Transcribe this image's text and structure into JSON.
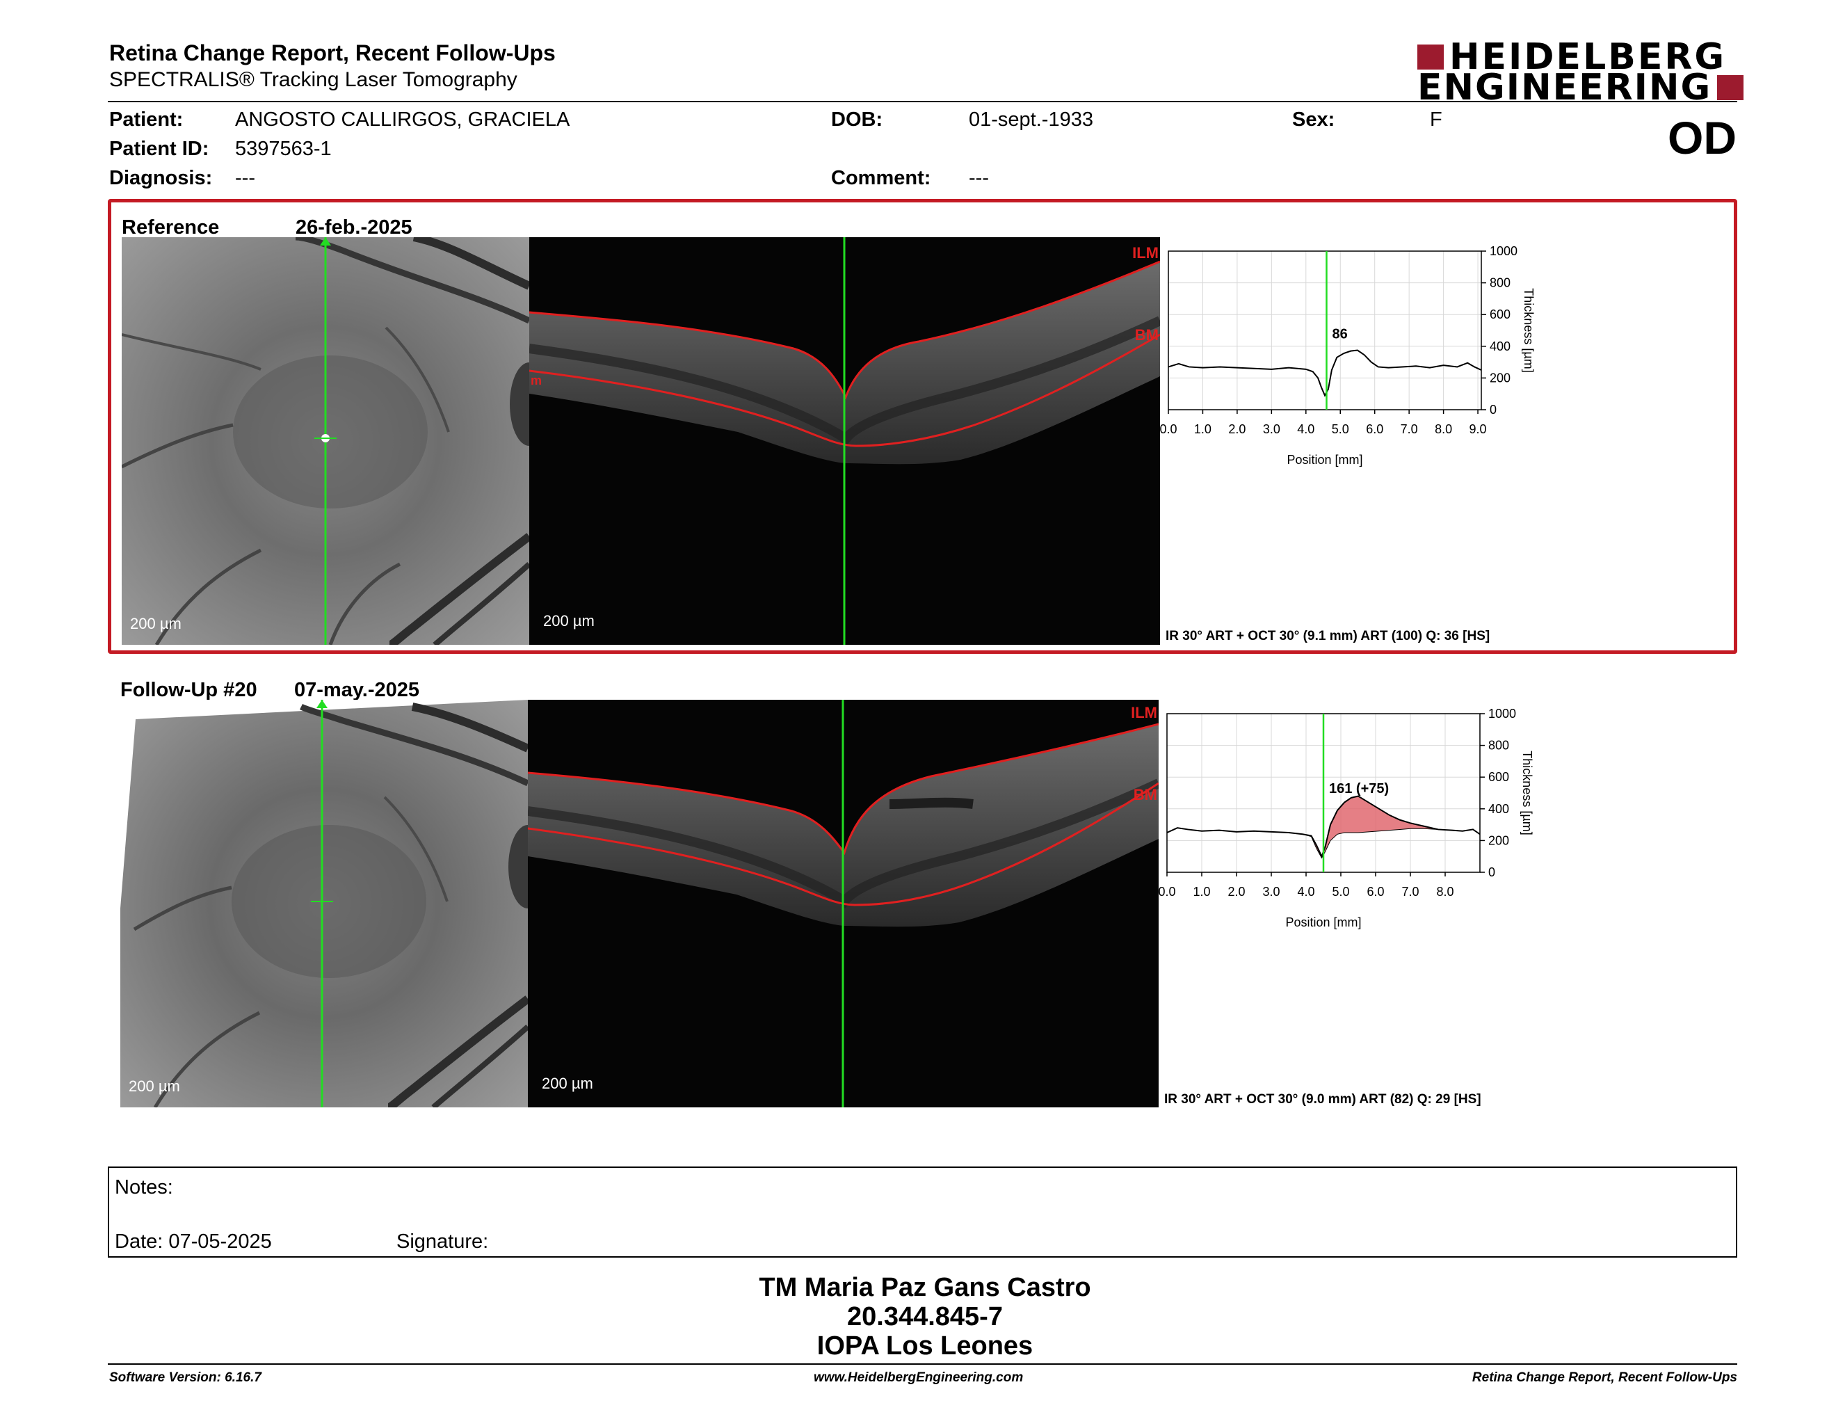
{
  "header": {
    "title": "Retina Change Report, Recent Follow-Ups",
    "subtitle": "SPECTRALIS® Tracking Laser Tomography",
    "logo_line1": "HEIDELBERG",
    "logo_line2": "ENGINEERING",
    "logo_color": "#9c1b2e"
  },
  "patient": {
    "patient_label": "Patient:",
    "patient_name": "ANGOSTO CALLIRGOS, GRACIELA",
    "dob_label": "DOB:",
    "dob": "01-sept.-1933",
    "sex_label": "Sex:",
    "sex": "F",
    "id_label": "Patient ID:",
    "patient_id": "5397563-1",
    "diagnosis_label": "Diagnosis:",
    "diagnosis": "---",
    "comment_label": "Comment:",
    "comment": "---",
    "eye": "OD"
  },
  "reference": {
    "label": "Reference",
    "date": "26-feb.-2025",
    "slo_scale": "200 µm",
    "oct_scale": "200 µm",
    "ilm_label": "ILM",
    "bm_label": "BM",
    "bm_left_label": "m",
    "scan_info": "IR 30° ART + OCT 30° (9.1 mm) ART (100) Q: 36 [HS]",
    "frame_color": "#c41b24"
  },
  "followup": {
    "label": "Follow-Up #20",
    "date": "07-may.-2025",
    "slo_scale": "200 µm",
    "oct_scale": "200 µm",
    "ilm_label": "ILM",
    "bm_label": "BM",
    "scan_info": "IR 30° ART + OCT 30° (9.0 mm) ART (82) Q: 29 [HS]"
  },
  "chart_data": [
    {
      "type": "line",
      "ylabel": "Thickness [µm]",
      "xlabel": "Position [mm]",
      "ylim": [
        0,
        1000
      ],
      "yticks": [
        "0",
        "200",
        "400",
        "600",
        "800",
        "1000"
      ],
      "xticks": [
        "0.0",
        "1.0",
        "2.0",
        "3.0",
        "4.0",
        "5.0",
        "6.0",
        "7.0",
        "8.0",
        "9.0"
      ],
      "xlim": [
        0,
        9.1
      ],
      "marker_position": 4.6,
      "annotation": "86",
      "grid": true,
      "x": [
        0.0,
        0.3,
        0.6,
        1.0,
        1.5,
        2.0,
        2.5,
        3.0,
        3.5,
        4.0,
        4.2,
        4.35,
        4.45,
        4.55,
        4.65,
        4.75,
        4.9,
        5.1,
        5.3,
        5.5,
        5.7,
        5.9,
        6.1,
        6.4,
        6.8,
        7.2,
        7.6,
        8.0,
        8.4,
        8.7,
        8.9,
        9.1
      ],
      "y": [
        270,
        290,
        270,
        265,
        270,
        265,
        260,
        255,
        265,
        255,
        240,
        200,
        140,
        90,
        130,
        250,
        330,
        355,
        370,
        375,
        345,
        300,
        270,
        265,
        270,
        275,
        265,
        280,
        270,
        295,
        270,
        250
      ],
      "line_color": "#000000"
    },
    {
      "type": "area",
      "ylabel": "Thickness [µm]",
      "xlabel": "Position [mm]",
      "ylim": [
        0,
        1000
      ],
      "yticks": [
        "0",
        "200",
        "400",
        "600",
        "800",
        "1000"
      ],
      "xticks": [
        "0.0",
        "1.0",
        "2.0",
        "3.0",
        "4.0",
        "5.0",
        "6.0",
        "7.0",
        "8.0"
      ],
      "xlim": [
        0,
        9.0
      ],
      "marker_position": 4.5,
      "annotation": "161 (+75)",
      "grid": true,
      "series": [
        {
          "name": "follow-up",
          "x": [
            0.0,
            0.3,
            0.6,
            1.0,
            1.5,
            2.0,
            2.5,
            3.0,
            3.5,
            3.9,
            4.15,
            4.3,
            4.45,
            4.55,
            4.7,
            4.9,
            5.1,
            5.3,
            5.5,
            5.8,
            6.1,
            6.4,
            6.7,
            7.0,
            7.4,
            7.8,
            8.2,
            8.5,
            8.8,
            9.0
          ],
          "y": [
            250,
            280,
            270,
            260,
            265,
            255,
            260,
            255,
            250,
            240,
            230,
            170,
            100,
            160,
            300,
            390,
            440,
            470,
            480,
            440,
            400,
            360,
            330,
            310,
            290,
            270,
            265,
            260,
            270,
            240
          ],
          "line_color": "#000000"
        },
        {
          "name": "reference",
          "x": [
            0.0,
            0.3,
            0.6,
            1.0,
            1.5,
            2.0,
            2.5,
            3.0,
            3.5,
            3.9,
            4.15,
            4.3,
            4.45,
            4.55,
            4.7,
            4.9,
            5.1,
            5.3,
            5.5,
            5.8,
            6.1,
            6.4,
            6.7,
            7.0,
            7.4,
            7.8,
            8.2,
            8.5,
            8.8,
            9.0
          ],
          "y": [
            250,
            280,
            270,
            260,
            265,
            255,
            260,
            255,
            250,
            240,
            225,
            150,
            90,
            130,
            200,
            240,
            250,
            250,
            250,
            255,
            260,
            265,
            270,
            275,
            275,
            270,
            265,
            260,
            270,
            240
          ],
          "line_color": "#000000"
        }
      ],
      "increase_color": "#e06870",
      "decrease_color": "#7a8c3a"
    }
  ],
  "notes": {
    "notes_label": "Notes:",
    "date_label": "Date: 07-05-2025",
    "signature_label": "Signature:"
  },
  "stamp": {
    "line1": "TM Maria Paz Gans Castro",
    "line2": "20.344.845-7",
    "line3": "IOPA Los Leones"
  },
  "footer": {
    "software": "Software Version: 6.16.7",
    "website": "www.HeidelbergEngineering.com",
    "report_name": "Retina Change Report, Recent Follow-Ups"
  }
}
